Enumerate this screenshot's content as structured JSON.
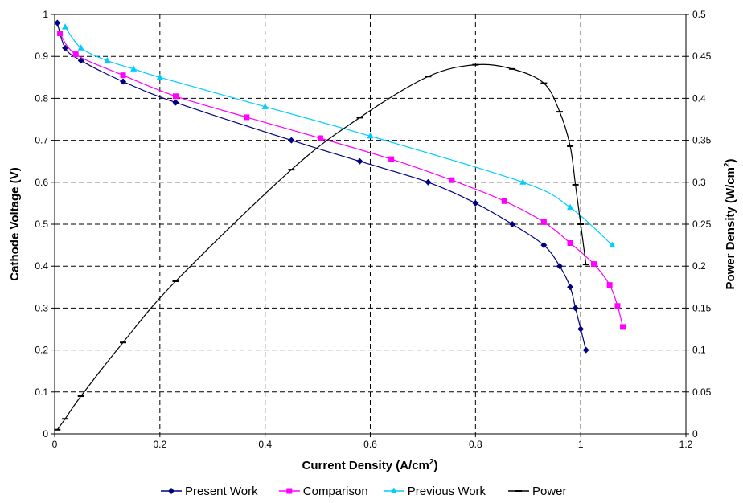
{
  "chart_data": {
    "type": "line",
    "xlabel": "Current Density (A/cm",
    "xlabel_sup": "2",
    "xlabel_close": ")",
    "ylabel": "Cathode Voltage (V)",
    "y2label": "Power Density (W/cm",
    "y2label_sup": "2",
    "y2label_close": ")",
    "xlim": [
      0,
      1.2
    ],
    "ylim": [
      0,
      1
    ],
    "y2lim": [
      0,
      0.5
    ],
    "x_ticks": [
      "0",
      "0.2",
      "0.4",
      "0.6",
      "0.8",
      "1",
      "1.2"
    ],
    "y_ticks": [
      "0",
      "0.1",
      "0.2",
      "0.3",
      "0.4",
      "0.5",
      "0.6",
      "0.7",
      "0.8",
      "0.9",
      "1"
    ],
    "y2_ticks": [
      "0",
      "0.05",
      "0.1",
      "0.15",
      "0.2",
      "0.25",
      "0.3",
      "0.35",
      "0.4",
      "0.45",
      "0.5"
    ],
    "grid": true,
    "legend_position": "bottom",
    "series": [
      {
        "name": "Present Work",
        "axis": "left",
        "color": "#000080",
        "marker": "diamond",
        "x": [
          0.005,
          0.02,
          0.05,
          0.13,
          0.23,
          0.45,
          0.58,
          0.71,
          0.8,
          0.87,
          0.93,
          0.96,
          0.98,
          0.99,
          1.0,
          1.01
        ],
        "y": [
          0.98,
          0.92,
          0.89,
          0.84,
          0.79,
          0.7,
          0.65,
          0.6,
          0.55,
          0.5,
          0.45,
          0.4,
          0.35,
          0.3,
          0.25,
          0.2
        ]
      },
      {
        "name": "Comparison",
        "axis": "left",
        "color": "#FF00FF",
        "marker": "square",
        "x": [
          0.01,
          0.04,
          0.13,
          0.23,
          0.365,
          0.505,
          0.64,
          0.755,
          0.855,
          0.93,
          0.98,
          1.025,
          1.055,
          1.07,
          1.08
        ],
        "y": [
          0.955,
          0.905,
          0.855,
          0.805,
          0.755,
          0.705,
          0.655,
          0.605,
          0.555,
          0.505,
          0.455,
          0.405,
          0.355,
          0.305,
          0.255
        ]
      },
      {
        "name": "Previous Work",
        "axis": "left",
        "color": "#00CCFF",
        "marker": "triangle",
        "x": [
          0.02,
          0.05,
          0.1,
          0.15,
          0.2,
          0.4,
          0.6,
          0.89,
          0.98,
          1.06
        ],
        "y": [
          0.97,
          0.92,
          0.89,
          0.87,
          0.85,
          0.78,
          0.71,
          0.6,
          0.54,
          0.45
        ]
      },
      {
        "name": "Power",
        "axis": "right",
        "color": "#000000",
        "marker": "dash",
        "x": [
          0.005,
          0.02,
          0.05,
          0.13,
          0.23,
          0.45,
          0.58,
          0.71,
          0.8,
          0.87,
          0.93,
          0.96,
          0.98,
          0.99,
          1.0,
          1.01
        ],
        "y": [
          0.005,
          0.018,
          0.045,
          0.109,
          0.182,
          0.315,
          0.377,
          0.426,
          0.44,
          0.435,
          0.418,
          0.384,
          0.343,
          0.297,
          0.25,
          0.202
        ]
      }
    ]
  }
}
